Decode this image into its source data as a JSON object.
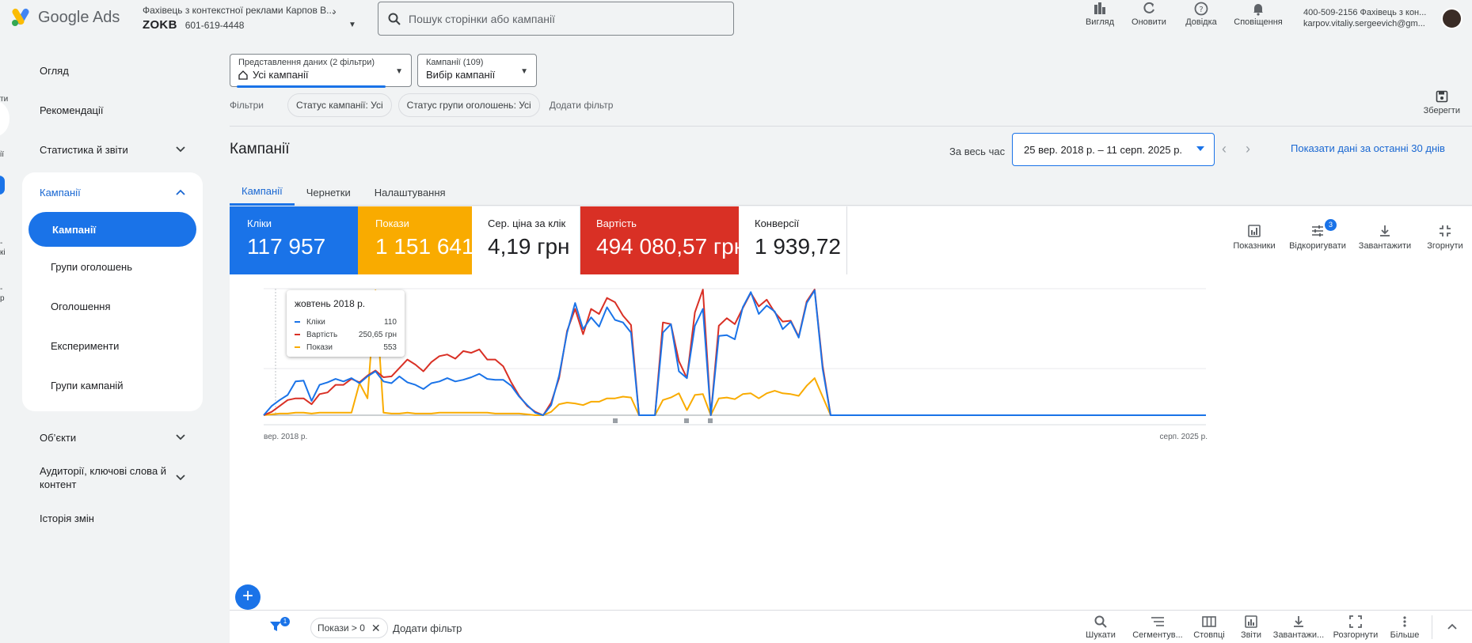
{
  "header": {
    "app_name": "Google Ads",
    "account_name": "Фахівець з контекстної реклами Карпов В...",
    "account_code": "ZOKB",
    "account_id": "601-619-4448",
    "search_placeholder": "Пошук сторінки або кампанії",
    "actions": [
      {
        "label": "Вигляд",
        "icon": "view-icon"
      },
      {
        "label": "Оновити",
        "icon": "refresh-icon"
      },
      {
        "label": "Довідка",
        "icon": "help-icon"
      },
      {
        "label": "Сповіщення",
        "icon": "bell-icon"
      }
    ],
    "user_line1": "400-509-2156 Фахівець з кон...",
    "user_line2": "karpov.vitaliy.sergeevich@gm..."
  },
  "leftrail": {
    "labels": [
      "ти",
      "ії",
      "-",
      "кі",
      "-",
      "р"
    ]
  },
  "nav": {
    "items_top": [
      "Огляд",
      "Рекомендації",
      "Статистика й звіти"
    ],
    "campaigns_group": "Кампанії",
    "active_item": "Кампанії",
    "sub_items": [
      "Групи оголошень",
      "Оголошення",
      "Експерименти",
      "Групи кампаній"
    ],
    "items_bottom": [
      "Об’єкти",
      "Аудиторії, ключові слова й контент",
      "Історія змін"
    ]
  },
  "view_selector": {
    "small": "Представлення даних (2 фільтри)",
    "value": "Усі кампанії"
  },
  "campaign_selector": {
    "small": "Кампанії (109)",
    "value": "Вибір кампанії"
  },
  "filters": {
    "label": "Фільтри",
    "chips": [
      "Статус кампанії: Усі",
      "Статус групи оголошень: Усі"
    ],
    "add": "Додати фільтр",
    "save": "Зберегти"
  },
  "page": {
    "title": "Кампанії",
    "date_label": "За весь час",
    "date_range": "25 вер. 2018 р. – 11 серп. 2025 р.",
    "last30": "Показати дані за останні 30 днів",
    "tabs": [
      "Кампанії",
      "Чернетки",
      "Налаштування"
    ]
  },
  "scorecards": [
    {
      "label": "Кліки",
      "value": "117 957",
      "color": "#1a73e8"
    },
    {
      "label": "Покази",
      "value": "1 151 641",
      "color": "#f9ab00"
    },
    {
      "label": "Сер. ціна за клік",
      "value": "4,19 грн",
      "color": "#ffffff"
    },
    {
      "label": "Вартість",
      "value": "494 080,57 грн",
      "color": "#d93025"
    },
    {
      "label": "Конверсії",
      "value": "1 939,72",
      "color": "#ffffff"
    }
  ],
  "chart_tools": [
    {
      "label": "Показники",
      "icon": "metrics-icon"
    },
    {
      "label": "Відкоригувати",
      "icon": "tune-icon",
      "badge": "3"
    },
    {
      "label": "Завантажити",
      "icon": "download-icon"
    },
    {
      "label": "Згорнути",
      "icon": "collapse-icon"
    }
  ],
  "tooltip": {
    "title": "жовтень 2018 р.",
    "rows": [
      {
        "name": "Кліки",
        "value": "110",
        "color": "#1a73e8"
      },
      {
        "name": "Вартість",
        "value": "250,65 грн",
        "color": "#d93025"
      },
      {
        "name": "Покази",
        "value": "553",
        "color": "#f9ab00"
      }
    ]
  },
  "chart_data": {
    "type": "line",
    "x_start_label": "вер. 2018 р.",
    "x_end_label": "серп. 2025 р.",
    "grid": true,
    "series": [
      {
        "name": "Кліки",
        "color": "#1a73e8",
        "values": [
          0,
          110,
          180,
          240,
          400,
          410,
          170,
          360,
          390,
          430,
          400,
          440,
          380,
          460,
          520,
          400,
          380,
          460,
          390,
          360,
          310,
          380,
          400,
          440,
          400,
          420,
          450,
          490,
          430,
          420,
          420,
          350,
          220,
          120,
          30,
          0,
          120,
          470,
          980,
          1330,
          1020,
          1160,
          1050,
          1280,
          1130,
          1100,
          980,
          0,
          0,
          0,
          980,
          1080,
          520,
          440,
          1060,
          1260,
          0,
          940,
          950,
          900,
          1280,
          1460,
          1200,
          1300,
          1230,
          1020,
          1110,
          920,
          1330,
          1480,
          550,
          0,
          0,
          0,
          0,
          0,
          0,
          0,
          0,
          0,
          0,
          0,
          0,
          0,
          0,
          0,
          0,
          0,
          0,
          0,
          0,
          0,
          0,
          0,
          0,
          0,
          0,
          0,
          0,
          0,
          0,
          0,
          0,
          0,
          0,
          0,
          0,
          0,
          0,
          0,
          0,
          0,
          0,
          0,
          0,
          0,
          0,
          0,
          0
        ]
      },
      {
        "name": "Вартість",
        "color": "#d93025",
        "values": [
          0,
          40,
          110,
          180,
          200,
          200,
          130,
          250,
          270,
          360,
          360,
          430,
          390,
          470,
          530,
          450,
          460,
          560,
          660,
          600,
          520,
          630,
          700,
          720,
          670,
          760,
          740,
          780,
          660,
          660,
          580,
          390,
          230,
          110,
          40,
          0,
          150,
          440,
          1000,
          1260,
          960,
          1260,
          1200,
          1390,
          1340,
          1180,
          1070,
          0,
          0,
          0,
          1100,
          1080,
          640,
          440,
          1220,
          1490,
          0,
          1060,
          1150,
          1080,
          1270,
          1450,
          1290,
          1370,
          1220,
          1110,
          1120,
          930,
          1350,
          1490,
          590,
          0,
          0,
          0,
          0,
          0,
          0,
          0,
          0,
          0,
          0,
          0,
          0,
          0,
          0,
          0,
          0,
          0,
          0,
          0,
          0,
          0,
          0,
          0,
          0,
          0,
          0,
          0,
          0,
          0,
          0,
          0,
          0,
          0,
          0,
          0,
          0,
          0,
          0,
          0,
          0,
          0,
          0,
          0,
          0,
          0,
          0,
          0,
          0
        ]
      },
      {
        "name": "Покази",
        "color": "#f9ab00",
        "values": [
          0,
          10,
          20,
          20,
          30,
          30,
          20,
          30,
          30,
          30,
          30,
          30,
          380,
          200,
          1480,
          30,
          20,
          20,
          30,
          20,
          20,
          20,
          30,
          30,
          30,
          30,
          30,
          30,
          30,
          20,
          20,
          20,
          20,
          10,
          0,
          0,
          40,
          130,
          150,
          140,
          120,
          160,
          160,
          200,
          200,
          220,
          210,
          0,
          0,
          0,
          180,
          210,
          260,
          60,
          240,
          250,
          0,
          200,
          210,
          190,
          250,
          260,
          200,
          260,
          290,
          260,
          250,
          230,
          350,
          440,
          220,
          0,
          0,
          0,
          0,
          0,
          0,
          0,
          0,
          0,
          0,
          0,
          0,
          0,
          0,
          0,
          0,
          0,
          0,
          0,
          0,
          0,
          0,
          0,
          0,
          0,
          0,
          0,
          0,
          0,
          0,
          0,
          0,
          0,
          0,
          0,
          0,
          0,
          0,
          0,
          0,
          0,
          0,
          0,
          0,
          0,
          0,
          0,
          0
        ]
      }
    ]
  },
  "bottom_bar": {
    "filter_badge": "1",
    "chip": "Покази > 0",
    "add_filter": "Додати фільтр",
    "tools": [
      "Шукати",
      "Сегментув...",
      "Стовпці",
      "Звіти",
      "Завантажи...",
      "Розгорнути",
      "Більше"
    ]
  }
}
